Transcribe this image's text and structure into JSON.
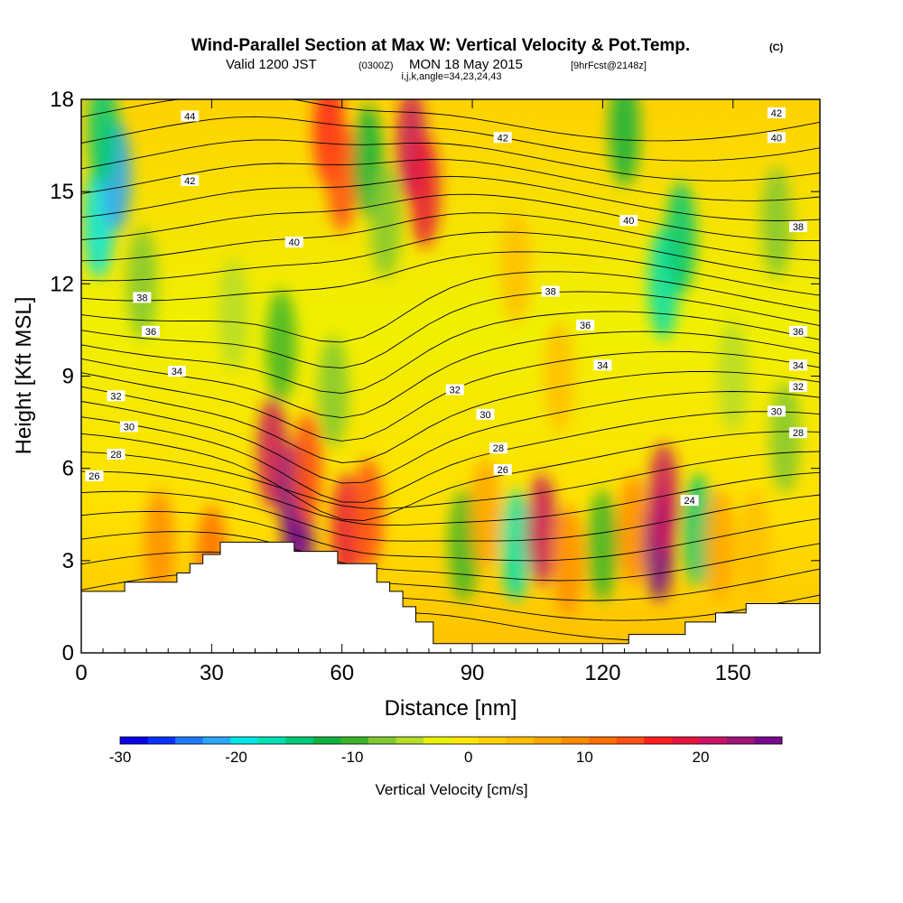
{
  "header": {
    "title_main": "Wind-Parallel Section at Max W: Vertical Velocity & Pot.Temp.",
    "title_mark": "(C)",
    "subtitle_a": "Valid 1200 JST",
    "subtitle_b": "(0300Z)",
    "subtitle_c": "MON 18 May 2015",
    "subtitle_d": "[9hrFcst@2148z]",
    "subtitle_line2": "i,j,k,angle=34,23,24,43"
  },
  "chart_data": {
    "type": "heatmap",
    "xlabel": "Distance [nm]",
    "ylabel": "Height [Kft MSL]",
    "xlim": [
      0,
      170
    ],
    "ylim": [
      0,
      18
    ],
    "x_ticks": [
      0,
      30,
      60,
      90,
      120,
      150
    ],
    "y_ticks": [
      0,
      3,
      6,
      9,
      12,
      15,
      18
    ],
    "colorbar": {
      "label": "Vertical Velocity [cm/s]",
      "range": [
        -30,
        27
      ],
      "ticks": [
        -30,
        -20,
        -10,
        0,
        10,
        20
      ],
      "colors": [
        "#0a00e6",
        "#0a32ff",
        "#1e78ff",
        "#2aa6ff",
        "#00e6e6",
        "#00e0b0",
        "#00c878",
        "#10b040",
        "#3cb428",
        "#80c832",
        "#b4dc28",
        "#e6f000",
        "#ffe600",
        "#ffd200",
        "#ffbe00",
        "#ffa500",
        "#ff8c00",
        "#ff6e00",
        "#ff5014",
        "#ff1e1e",
        "#e6143c",
        "#c81464",
        "#a01478",
        "#780a8c"
      ]
    },
    "terrain_kft": [
      [
        0,
        2.0
      ],
      [
        10,
        2.0
      ],
      [
        10,
        2.3
      ],
      [
        22,
        2.3
      ],
      [
        22,
        2.6
      ],
      [
        25,
        2.6
      ],
      [
        25,
        2.9
      ],
      [
        28,
        2.9
      ],
      [
        28,
        3.2
      ],
      [
        32,
        3.2
      ],
      [
        32,
        3.6
      ],
      [
        49,
        3.6
      ],
      [
        49,
        3.3
      ],
      [
        59,
        3.3
      ],
      [
        59,
        2.9
      ],
      [
        68,
        2.9
      ],
      [
        68,
        2.3
      ],
      [
        71,
        2.3
      ],
      [
        71,
        2.0
      ],
      [
        74,
        2.0
      ],
      [
        74,
        1.5
      ],
      [
        77,
        1.5
      ],
      [
        77,
        1.0
      ],
      [
        81,
        1.0
      ],
      [
        81,
        0.3
      ],
      [
        126,
        0.3
      ],
      [
        126,
        0.6
      ],
      [
        139,
        0.6
      ],
      [
        139,
        1.0
      ],
      [
        146,
        1.0
      ],
      [
        146,
        1.3
      ],
      [
        153,
        1.3
      ],
      [
        153,
        1.6
      ],
      [
        170,
        1.6
      ]
    ],
    "theta_contour_labels": [
      "44",
      "42",
      "42",
      "42",
      "40",
      "40",
      "40",
      "38",
      "38",
      "38",
      "36",
      "36",
      "36",
      "34",
      "34",
      "34",
      "32",
      "32",
      "32",
      "30",
      "30",
      "30",
      "28",
      "28",
      "28",
      "26",
      "26",
      "24"
    ],
    "wind_cells_cms": [
      [
        4,
        14,
        -20
      ],
      [
        8,
        15.5,
        -22
      ],
      [
        5,
        17,
        -14
      ],
      [
        14,
        12,
        -8
      ],
      [
        18,
        3.5,
        9
      ],
      [
        30,
        3,
        12
      ],
      [
        44,
        6.5,
        20
      ],
      [
        49,
        5,
        25
      ],
      [
        50,
        3.5,
        28
      ],
      [
        52,
        6,
        14
      ],
      [
        61,
        4,
        18
      ],
      [
        66,
        4.5,
        15
      ],
      [
        57,
        17,
        16
      ],
      [
        60,
        15.5,
        14
      ],
      [
        66,
        16,
        -12
      ],
      [
        70,
        14,
        -8
      ],
      [
        76,
        16.5,
        22
      ],
      [
        79,
        15,
        18
      ],
      [
        88,
        3.5,
        -10
      ],
      [
        93,
        4.5,
        6
      ],
      [
        100,
        3.5,
        -18
      ],
      [
        106,
        4,
        20
      ],
      [
        112,
        3,
        9
      ],
      [
        120,
        3.5,
        -10
      ],
      [
        127,
        4,
        8
      ],
      [
        133,
        3.5,
        26
      ],
      [
        134,
        5,
        22
      ],
      [
        142,
        4,
        -14
      ],
      [
        147,
        3.5,
        6
      ],
      [
        134,
        12,
        -18
      ],
      [
        138,
        13.5,
        -14
      ],
      [
        125,
        17,
        -12
      ],
      [
        160,
        14,
        -8
      ],
      [
        162,
        7,
        -7
      ],
      [
        150,
        9,
        -4
      ],
      [
        46,
        10,
        -9
      ],
      [
        58,
        8.5,
        -7
      ],
      [
        35,
        11,
        -5
      ],
      [
        100,
        12.5,
        5
      ],
      [
        110,
        9,
        4
      ],
      [
        155,
        3.5,
        5
      ]
    ]
  }
}
